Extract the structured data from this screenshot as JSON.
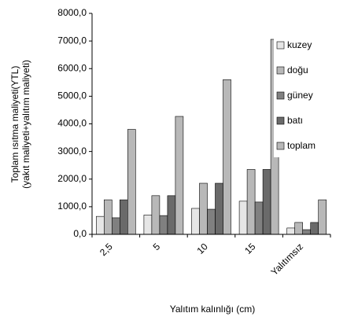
{
  "chart_data": {
    "type": "bar",
    "ylabel": [
      "Toplam ısıtma maliyeti(YTL)",
      "(yakıt maliyeti+yalıtım maliyeti)"
    ],
    "xlabel": "Yalıtım kalınlığı (cm)",
    "categories": [
      "2,5",
      "5",
      "10",
      "15",
      "Yalıtımsız"
    ],
    "series": [
      {
        "name": "kuzey",
        "color": "#e6e6e6",
        "values": [
          650,
          700,
          940,
          1200,
          230
        ]
      },
      {
        "name": "doğu",
        "color": "#b8b8b8",
        "values": [
          1250,
          1400,
          1850,
          2350,
          430
        ]
      },
      {
        "name": "güney",
        "color": "#808080",
        "values": [
          600,
          680,
          910,
          1170,
          170
        ]
      },
      {
        "name": "batı",
        "color": "#6a6a6a",
        "values": [
          1250,
          1400,
          1850,
          2350,
          430
        ]
      },
      {
        "name": "toplam",
        "color": "#b8b8b8",
        "values": [
          3800,
          4270,
          5600,
          7060,
          1250
        ]
      }
    ],
    "ylim": [
      0,
      8000
    ],
    "yticks": [
      {
        "value": 0,
        "label": "0,0"
      },
      {
        "value": 1000,
        "label": "1000,0"
      },
      {
        "value": 2000,
        "label": "2000,0"
      },
      {
        "value": 3000,
        "label": "3000,0"
      },
      {
        "value": 4000,
        "label": "4000,0"
      },
      {
        "value": 5000,
        "label": "5000,0"
      },
      {
        "value": 6000,
        "label": "6000,0"
      },
      {
        "value": 7000,
        "label": "7000,0"
      },
      {
        "value": 8000,
        "label": "8000,0"
      }
    ]
  }
}
